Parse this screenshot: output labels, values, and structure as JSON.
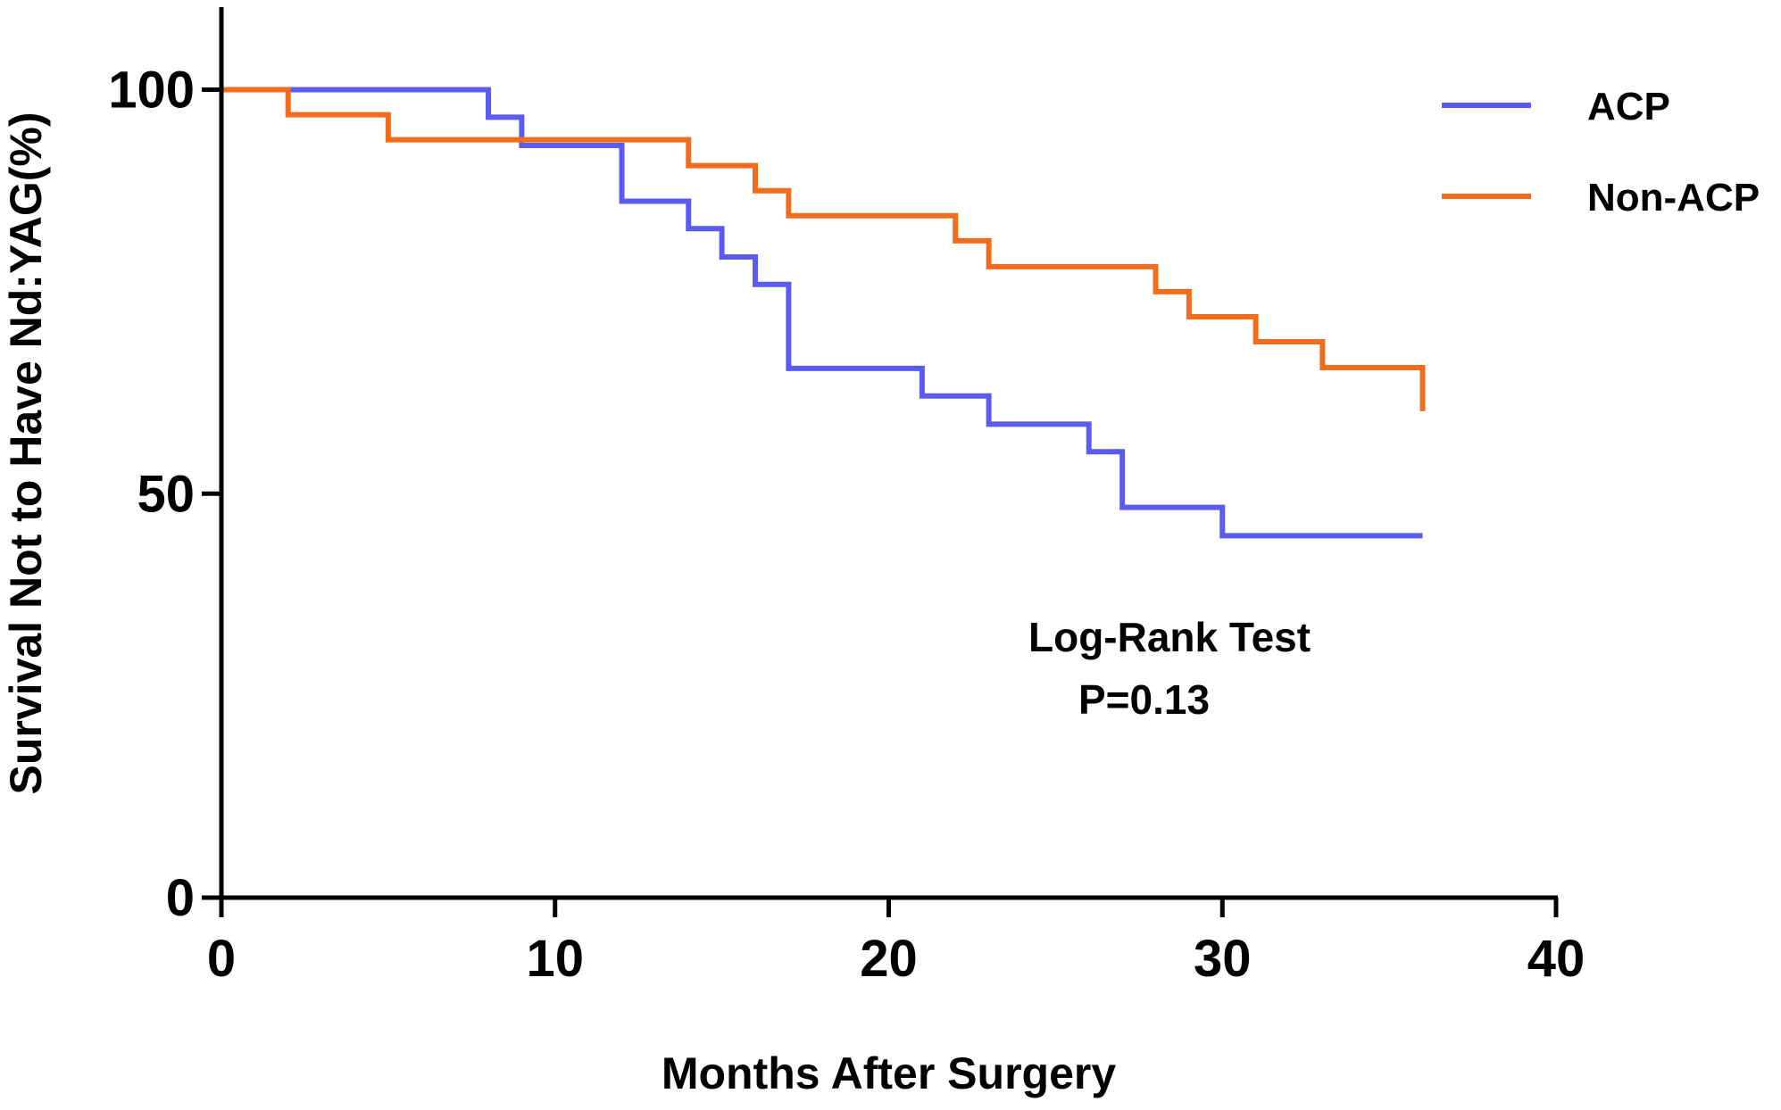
{
  "chart_data": {
    "type": "line",
    "subtype": "kaplan-meier-step",
    "title": "",
    "xlabel": "Months After Surgery",
    "ylabel": "Survival Not to Have Nd:YAG(%)",
    "xlim": [
      0,
      40
    ],
    "ylim": [
      0,
      110
    ],
    "xticks": [
      0,
      10,
      20,
      30,
      40
    ],
    "yticks": [
      0,
      50,
      100
    ],
    "grid": false,
    "legend_position": "top-right",
    "series": [
      {
        "name": "ACP",
        "color": "#5b5bf0",
        "x": [
          0,
          8,
          9,
          12,
          14,
          15,
          16,
          17,
          21,
          23,
          26,
          27,
          30,
          36
        ],
        "y": [
          100,
          96.6,
          93.1,
          86.2,
          82.8,
          79.3,
          75.9,
          65.5,
          62.1,
          58.6,
          55.2,
          48.3,
          44.8,
          44.8
        ]
      },
      {
        "name": "Non-ACP",
        "color": "#f26c1d",
        "x": [
          0,
          2,
          5,
          14,
          16,
          17,
          22,
          23,
          28,
          29,
          31,
          33,
          36
        ],
        "y": [
          100,
          96.9,
          93.8,
          90.6,
          87.5,
          84.4,
          81.3,
          78.1,
          75.0,
          71.9,
          68.8,
          65.6,
          60.2
        ]
      }
    ],
    "annotations": {
      "test_label": "Log-Rank Test",
      "p_value": "P=0.13"
    }
  }
}
